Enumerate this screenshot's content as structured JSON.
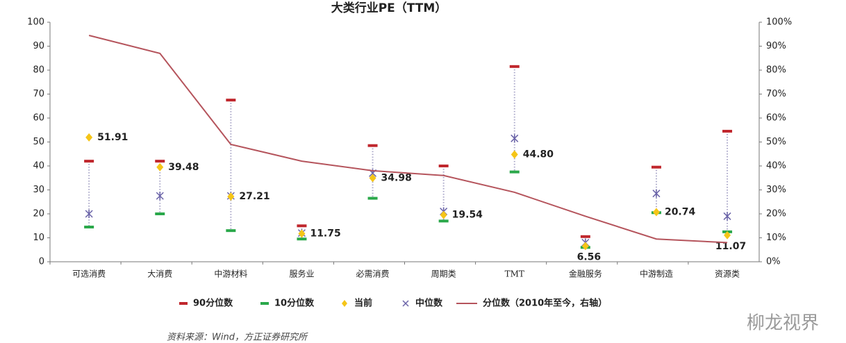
{
  "chart_data": {
    "type": "range-dot",
    "title": "大类行业PE（TTM）",
    "categories": [
      "可选消费",
      "大消费",
      "中游材料",
      "服务业",
      "必需消费",
      "周期类",
      "TMT",
      "金融服务",
      "中游制造",
      "资源类"
    ],
    "series": [
      {
        "name": "90分位数",
        "color": "#c0272d",
        "marker": "dash",
        "values": [
          42,
          42,
          67.5,
          15,
          48.5,
          40,
          81.5,
          10.5,
          39.5,
          54.5
        ]
      },
      {
        "name": "10分位数",
        "color": "#2aa84a",
        "marker": "dash",
        "values": [
          14.5,
          20,
          13,
          9.5,
          26.5,
          17,
          37.5,
          6,
          20.5,
          12.5
        ]
      },
      {
        "name": "当前",
        "color": "#f5c518",
        "marker": "diamond",
        "values": [
          51.91,
          39.48,
          27.21,
          11.75,
          34.98,
          19.54,
          44.8,
          6.56,
          20.74,
          11.07
        ],
        "value_labels": [
          "51.91",
          "39.48",
          "27.21",
          "11.75",
          "34.98",
          "19.54",
          "44.80",
          "6.56",
          "20.74",
          "11.07"
        ]
      },
      {
        "name": "中位数",
        "color": "#6a63a8",
        "marker": "x",
        "values": [
          20,
          27.5,
          27.5,
          12,
          37,
          21,
          51.5,
          8,
          28.5,
          19
        ]
      },
      {
        "name": "分位数（2010年至今，右轴）",
        "color": "#b5545c",
        "marker": "line",
        "axis": "y2",
        "values": [
          94.5,
          87,
          49,
          42,
          38,
          36,
          29,
          19,
          9.5,
          8
        ]
      }
    ],
    "ylim": [
      0,
      100
    ],
    "yticks": [
      0,
      10,
      20,
      30,
      40,
      50,
      60,
      70,
      80,
      90,
      100
    ],
    "y2lim": [
      0,
      100
    ],
    "y2ticks": [
      {
        "value": 0,
        "label": "0%"
      },
      {
        "value": 10,
        "label": "10%"
      },
      {
        "value": 20,
        "label": "20%"
      },
      {
        "value": 30,
        "label": "30%"
      },
      {
        "value": 40,
        "label": "40%"
      },
      {
        "value": 50,
        "label": "50%"
      },
      {
        "value": 60,
        "label": "60%"
      },
      {
        "value": 70,
        "label": "70%"
      },
      {
        "value": 80,
        "label": "80%"
      },
      {
        "value": 90,
        "label": "90%"
      },
      {
        "value": 100,
        "label": "100%"
      }
    ],
    "legend": "bottom",
    "source": "资料来源：Wind，方正证券研究所",
    "watermark": "柳龙视界"
  }
}
